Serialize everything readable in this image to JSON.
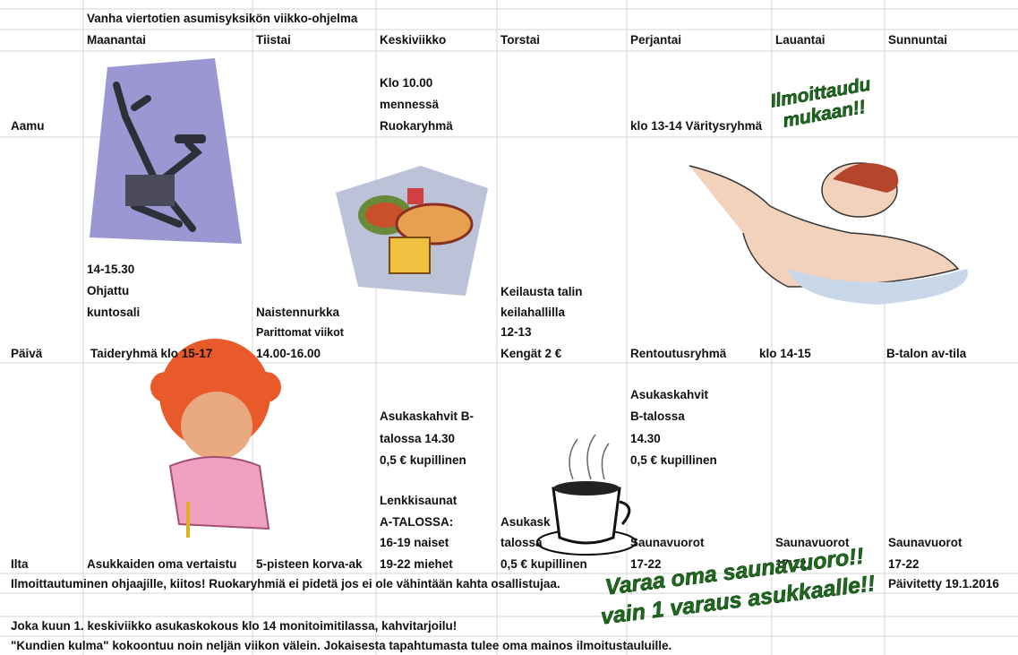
{
  "title": "Vanha viertotien asumisyksikön viikko-ohjelma",
  "days": [
    "Maanantai",
    "Tiistai",
    "Keskiviikko",
    "Torstai",
    "Perjantai",
    "Lauantai",
    "Sunnuntai"
  ],
  "rows": {
    "aamu": {
      "label": "Aamu",
      "keskiviikko": [
        "Klo 10.00",
        "mennessä",
        "Ruokaryhmä"
      ],
      "perjantai": "klo 13-14  Väritysryhmä"
    },
    "paiva": {
      "label": "Päivä",
      "maanantai": [
        "14-15.30",
        "Ohjattu",
        "kuntosali",
        "Taideryhmä klo 15-17"
      ],
      "tiistai": [
        "Naistennurkka",
        "Parittomat viikot",
        "14.00-16.00"
      ],
      "torstai": [
        "Keilausta talin",
        "keilahallilla",
        "12-13",
        "Kengät 2 €"
      ],
      "perjantai": [
        "Rentoutusryhmä",
        "klo 14-15"
      ],
      "sunnuntai": "B-talon av-tila"
    },
    "ilta": {
      "label": "Ilta",
      "maanantai": "Asukkaiden oma vertaistu",
      "tiistai": "5-pisteen korva-ak",
      "keskiviikko": [
        "Asukaskahvit B-",
        "talossa 14.30",
        "0,5 € kupillinen",
        "Lenkkisaunat",
        "A-TALOSSA:",
        "16-19 naiset",
        "19-22 miehet"
      ],
      "torstai": [
        "Asukask",
        "talossa",
        "0,5 € kupillinen"
      ],
      "perjantai": [
        "Asukaskahvit",
        "B-talossa",
        "14.30",
        "0,5 € kupillinen",
        "Saunavuorot",
        "17-22"
      ],
      "lauantai": [
        "Saunavuorot",
        "17-22"
      ],
      "sunnuntai": [
        "Saunavuorot",
        "17-22"
      ]
    }
  },
  "footer": {
    "note": "Ilmoittautuminen ohjaajille, kiitos! Ruokaryhmiä ei pidetä jos ei ole vähintään kahta osallistujaa.",
    "updated": "Päivitetty 19.1.2016",
    "lines": [
      "Joka kuun 1. keskiviikko asukaskokous klo 14 monitoimitilassa, kahvitarjoilu!",
      "\"Kundien kulma\" kokoontuu noin neljän viikon välein. Jokaisesta tapahtumasta tulee oma mainos ilmoitustauluille."
    ]
  },
  "banners": {
    "signup": [
      "Ilmoittaudu",
      "mukaan!!"
    ],
    "sauna": [
      "Varaa oma saunavuoro!!",
      "vain 1 varaus asukkaalle!!"
    ]
  }
}
